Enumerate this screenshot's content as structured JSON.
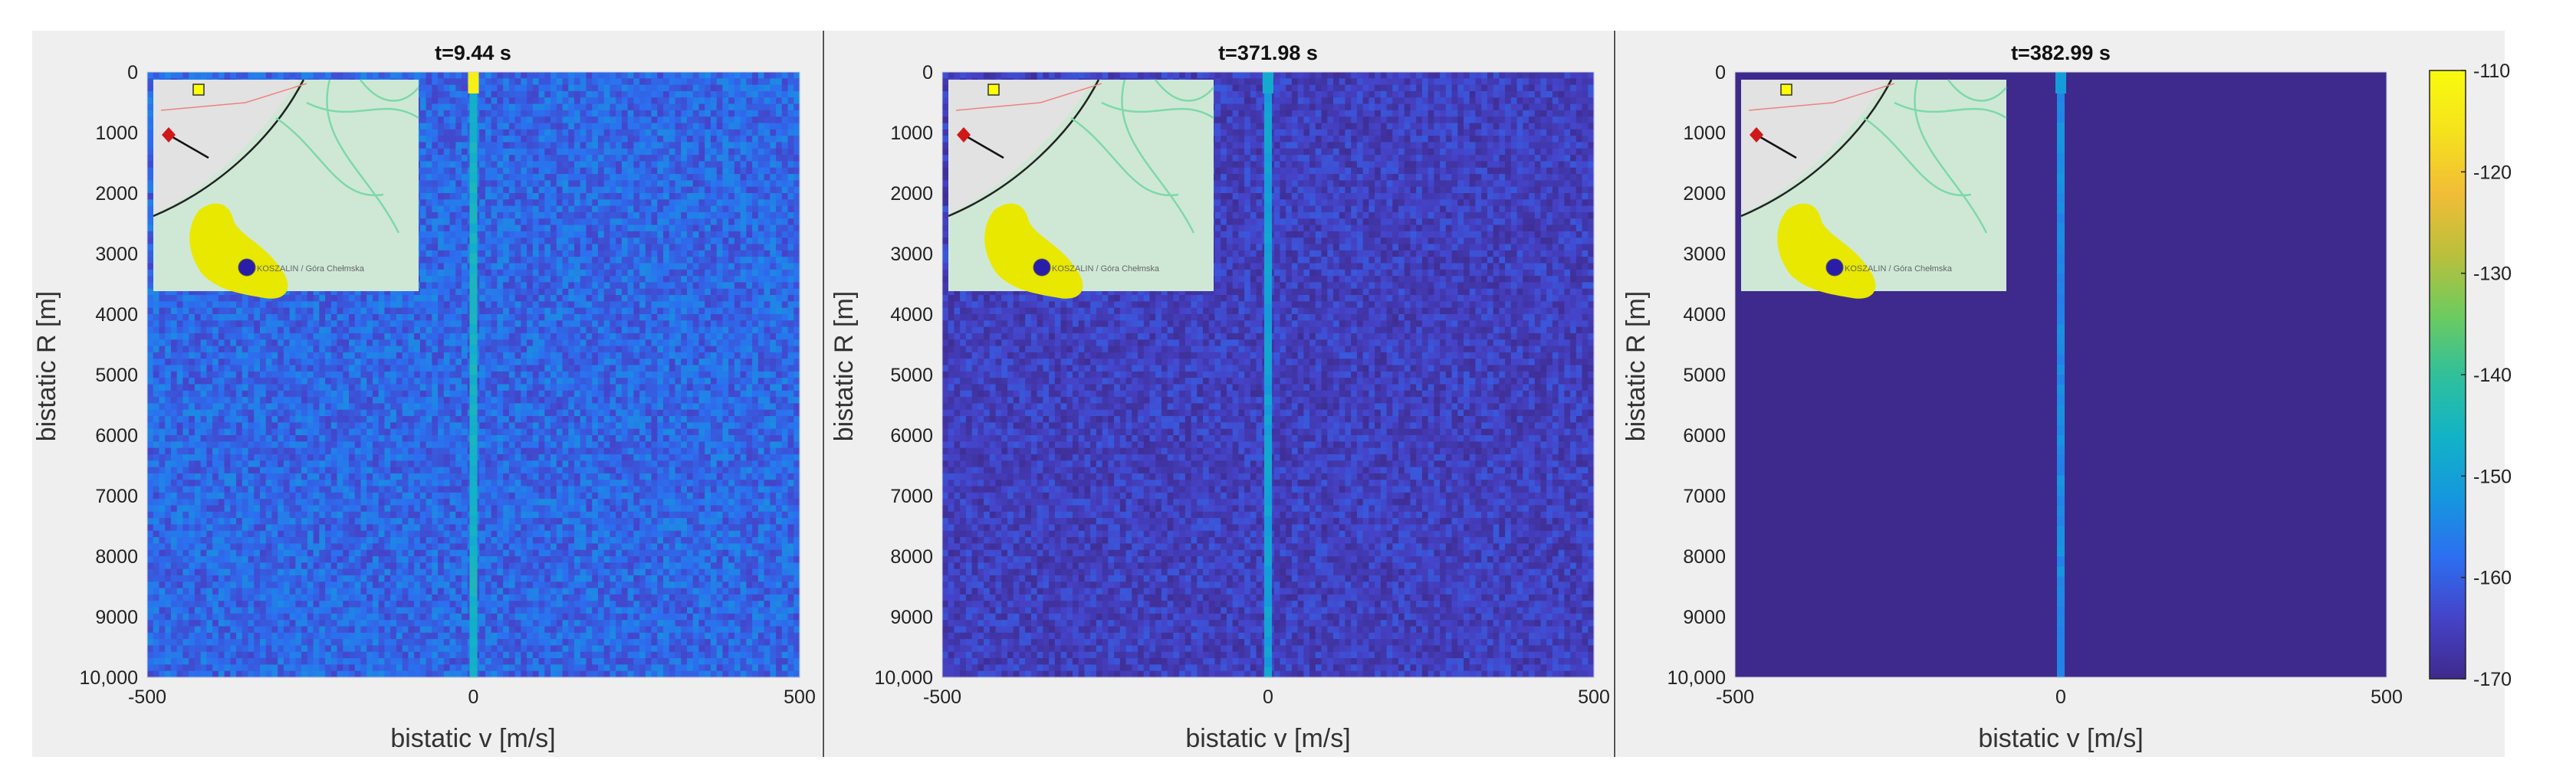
{
  "chart_data": [
    {
      "type": "heatmap",
      "title": "t=9.44 s",
      "xlabel": "bistatic v [m/s]",
      "ylabel": "bistatic R [m]",
      "xlim": [
        -500,
        500
      ],
      "ylim": [
        0,
        10000
      ],
      "xticks": [
        "-500",
        "0",
        "500"
      ],
      "yticks": [
        "0",
        "1000",
        "2000",
        "3000",
        "4000",
        "5000",
        "6000",
        "7000",
        "8000",
        "9000",
        "10,000"
      ],
      "noise_level_db": -159,
      "noise_spread_db": 5,
      "zero_doppler_line_db": -146,
      "peak_at_origin_db": -113,
      "inset_map_label": "KOSZALIN / Góra Chełmska",
      "show_yticks": true
    },
    {
      "type": "heatmap",
      "title": "t=371.98 s",
      "xlabel": "bistatic v [m/s]",
      "ylabel": "bistatic R [m]",
      "xlim": [
        -500,
        500
      ],
      "ylim": [
        0,
        10000
      ],
      "xticks": [
        "-500",
        "0",
        "500"
      ],
      "yticks": [
        "0",
        "1000",
        "2000",
        "3000",
        "4000",
        "5000",
        "6000",
        "7000",
        "8000",
        "9000",
        "10,000"
      ],
      "noise_level_db": -165,
      "noise_spread_db": 4,
      "zero_doppler_line_db": -150,
      "peak_at_origin_db": -148,
      "inset_map_label": "KOSZALIN / Góra Chełmska",
      "show_yticks": true
    },
    {
      "type": "heatmap",
      "title": "t=382.99 s",
      "xlabel": "bistatic v [m/s]",
      "ylabel": "bistatic R [m]",
      "xlim": [
        -500,
        500
      ],
      "ylim": [
        0,
        10000
      ],
      "xticks": [
        "-500",
        "0",
        "500"
      ],
      "yticks": [
        "0",
        "1000",
        "2000",
        "3000",
        "4000",
        "5000",
        "6000",
        "7000",
        "8000",
        "9000",
        "10,000"
      ],
      "noise_level_db": -170,
      "noise_spread_db": 0,
      "zero_doppler_line_db": -154,
      "peak_at_origin_db": -151,
      "inset_map_label": "KOSZALIN / Góra Chełmska",
      "show_yticks": true
    }
  ],
  "colorbar": {
    "min": -170,
    "max": -110,
    "ticks": [
      "-110",
      "-120",
      "-130",
      "-140",
      "-150",
      "-160",
      "-170"
    ],
    "colormap": [
      "#3e2a8c",
      "#4543c8",
      "#2c6ff0",
      "#1598dd",
      "#12b3c6",
      "#31c09a",
      "#6fcb5e",
      "#bcbf3b",
      "#f2bd37",
      "#f5e21d",
      "#f9fb0e"
    ]
  },
  "colors": {
    "panel_background": "#efefef",
    "separator": "#555555",
    "map_land": "#cfe8d6",
    "map_town": "#e8e800",
    "transmitter": "#2a1ea8",
    "receiver": "#d01818"
  }
}
